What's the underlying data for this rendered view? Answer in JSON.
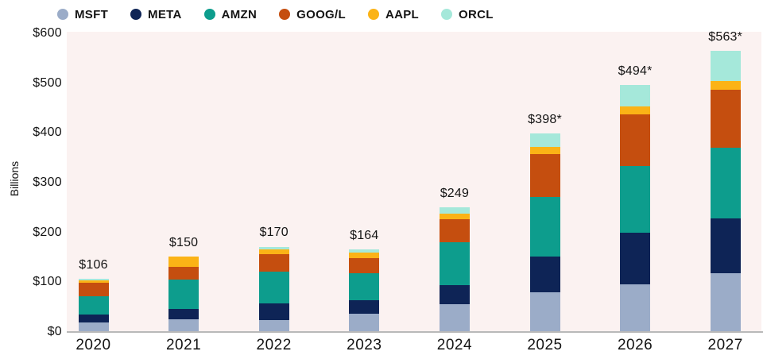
{
  "colors": {
    "plot_background": "#FBF2F1",
    "axis_line": "#B9B9B9",
    "text": "#141414"
  },
  "y_axis": {
    "title": "Billions",
    "tick_labels": [
      "$0",
      "$100",
      "$200",
      "$300",
      "$400",
      "$500",
      "$600"
    ],
    "tick_values": [
      0,
      100,
      200,
      300,
      400,
      500,
      600
    ]
  },
  "chart_data": {
    "type": "bar",
    "stacked": true,
    "title": "",
    "xlabel": "",
    "ylabel": "Billions",
    "ylim": [
      0,
      600
    ],
    "grid": false,
    "legend_position": "top-left",
    "categories": [
      "2020",
      "2021",
      "2022",
      "2023",
      "2024",
      "2025",
      "2026",
      "2027"
    ],
    "series": [
      {
        "name": "MSFT",
        "color": "#9BACC8",
        "values": [
          17,
          24,
          23,
          35,
          55,
          78,
          94,
          117
        ]
      },
      {
        "name": "META",
        "color": "#0E2456",
        "values": [
          17,
          20,
          33,
          27,
          38,
          72,
          104,
          109
        ]
      },
      {
        "name": "AMZN",
        "color": "#0D9D8D",
        "values": [
          36,
          60,
          63,
          55,
          85,
          120,
          134,
          142
        ]
      },
      {
        "name": "GOOG/L",
        "color": "#C54E0F",
        "values": [
          28,
          25,
          36,
          30,
          47,
          86,
          103,
          117
        ]
      },
      {
        "name": "AAPL",
        "color": "#FBB316",
        "values": [
          5,
          21,
          10,
          11,
          11,
          14,
          17,
          18
        ]
      },
      {
        "name": "ORCL",
        "color": "#A5E8DA",
        "values": [
          3,
          0,
          5,
          6,
          13,
          28,
          42,
          60
        ]
      }
    ],
    "totals": [
      106,
      150,
      170,
      164,
      249,
      398,
      494,
      563
    ],
    "total_labels": [
      "$106",
      "$150",
      "$170",
      "$164",
      "$249",
      "$398*",
      "$494*",
      "$563*"
    ]
  }
}
